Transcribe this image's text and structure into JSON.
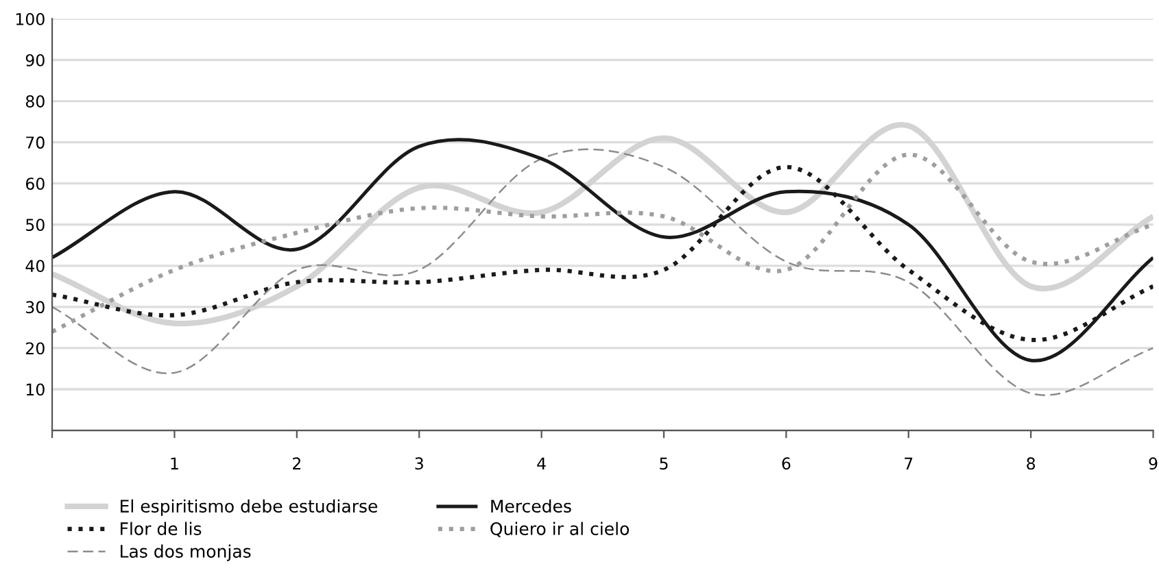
{
  "chart_data": {
    "type": "line",
    "x": [
      0,
      1,
      2,
      3,
      4,
      5,
      6,
      7,
      8,
      9
    ],
    "xlim": [
      0,
      9
    ],
    "xticks": [
      {
        "value": 0,
        "label": null
      },
      1,
      2,
      3,
      4,
      5,
      6,
      7,
      8,
      9
    ],
    "ylim": [
      0,
      100
    ],
    "yticks": [
      {
        "value": 0,
        "label": null
      },
      10,
      20,
      30,
      40,
      50,
      60,
      70,
      80,
      90,
      100
    ],
    "grid": "y",
    "legend": "bottom",
    "series": [
      {
        "name": "El espiritismo debe estudiarse",
        "color": "#d3d3d3",
        "line_style": "solid",
        "values": [
          38,
          26,
          35,
          59,
          53,
          71,
          53,
          74,
          35,
          52
        ]
      },
      {
        "name": "Flor de lis",
        "color": "#1a1a1a",
        "line_style": "dotted",
        "values": [
          33,
          28,
          36,
          36,
          39,
          39,
          64,
          39,
          22,
          35
        ]
      },
      {
        "name": "Las dos monjas",
        "color": "#8c8c8c",
        "line_style": "dashed",
        "values": [
          30,
          14,
          39,
          39,
          66,
          64,
          41,
          36,
          9,
          20
        ]
      },
      {
        "name": "Mercedes",
        "color": "#1a1a1a",
        "line_style": "solid",
        "values": [
          42,
          58,
          44,
          69,
          66,
          47,
          58,
          50,
          17,
          42
        ]
      },
      {
        "name": "Quiero ir al cielo",
        "color": "#9e9e9e",
        "line_style": "dotted",
        "values": [
          24,
          39,
          48,
          54,
          52,
          52,
          39,
          67,
          41,
          50
        ]
      }
    ]
  }
}
